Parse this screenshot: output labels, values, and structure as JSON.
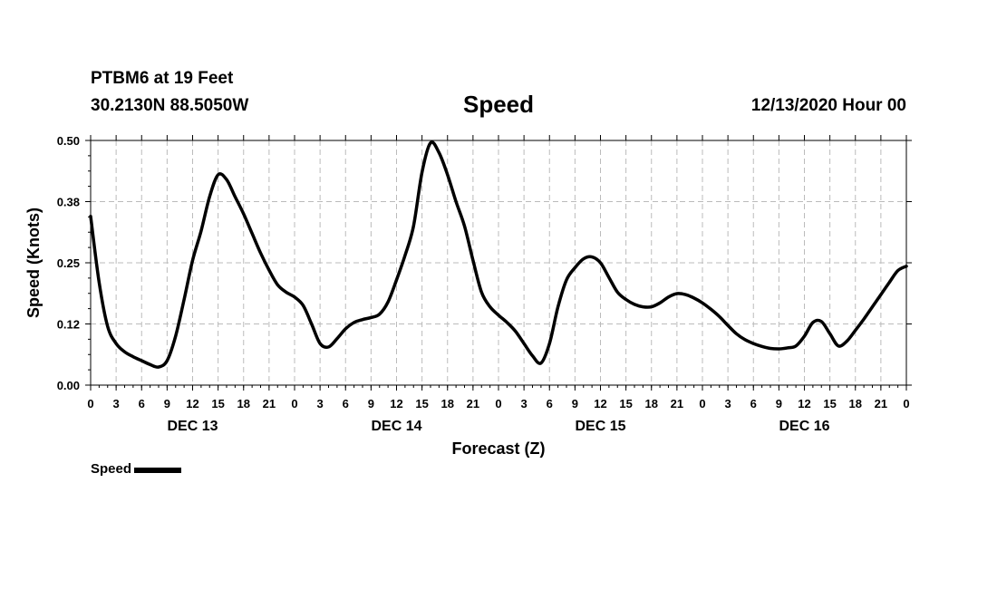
{
  "header": {
    "station": "PTBM6 at 19 Feet",
    "coords": "30.2130N 88.5050W",
    "title": "Speed",
    "timestamp": "12/13/2020 Hour 00"
  },
  "legend": {
    "label": "Speed"
  },
  "colors": {
    "line": "#000000",
    "grid": "#bbbbbb",
    "background": "#ffffff"
  },
  "chart_data": {
    "type": "line",
    "title": "Speed",
    "xlabel": "Forecast (Z)",
    "ylabel": "Speed (Knots)",
    "xlim": [
      0,
      96
    ],
    "ylim": [
      0,
      0.5
    ],
    "y_ticks": [
      0.0,
      0.125,
      0.25,
      0.375,
      0.5
    ],
    "y_tick_labels": [
      "0.00",
      "0.12",
      "0.25",
      "0.38",
      "0.50"
    ],
    "x_ticks": [
      0,
      3,
      6,
      9,
      12,
      15,
      18,
      21,
      24,
      27,
      30,
      33,
      36,
      39,
      42,
      45,
      48,
      51,
      54,
      57,
      60,
      63,
      66,
      69,
      72,
      75,
      78,
      81,
      84,
      87,
      90,
      93,
      96
    ],
    "x_tick_labels": [
      "0",
      "3",
      "6",
      "9",
      "12",
      "15",
      "18",
      "21",
      "0",
      "3",
      "6",
      "9",
      "12",
      "15",
      "18",
      "21",
      "0",
      "3",
      "6",
      "9",
      "12",
      "15",
      "18",
      "21",
      "0",
      "3",
      "6",
      "9",
      "12",
      "15",
      "18",
      "21",
      "0"
    ],
    "day_labels": [
      {
        "hour": 12,
        "label": "DEC 13"
      },
      {
        "hour": 36,
        "label": "DEC 14"
      },
      {
        "hour": 60,
        "label": "DEC 15"
      },
      {
        "hour": 84,
        "label": "DEC 16"
      }
    ],
    "grid": true,
    "series": [
      {
        "name": "Speed",
        "x": [
          0,
          1,
          2,
          3,
          4,
          5,
          6,
          7,
          8,
          9,
          10,
          11,
          12,
          13,
          14,
          15,
          16,
          17,
          18,
          19,
          20,
          21,
          22,
          23,
          24,
          25,
          26,
          27,
          28,
          29,
          30,
          31,
          32,
          33,
          34,
          35,
          36,
          37,
          38,
          39,
          40,
          41,
          42,
          43,
          44,
          45,
          46,
          47,
          48,
          49,
          50,
          51,
          52,
          53,
          54,
          55,
          56,
          57,
          58,
          59,
          60,
          61,
          62,
          63,
          64,
          65,
          66,
          67,
          68,
          69,
          70,
          71,
          72,
          73,
          74,
          75,
          76,
          77,
          78,
          79,
          80,
          81,
          82,
          83,
          84,
          85,
          86,
          87,
          88,
          89,
          90,
          91,
          92,
          93,
          94,
          95,
          96
        ],
        "values": [
          0.345,
          0.21,
          0.12,
          0.085,
          0.068,
          0.058,
          0.05,
          0.042,
          0.037,
          0.05,
          0.1,
          0.175,
          0.255,
          0.315,
          0.385,
          0.43,
          0.42,
          0.385,
          0.35,
          0.31,
          0.27,
          0.235,
          0.205,
          0.19,
          0.18,
          0.163,
          0.125,
          0.085,
          0.078,
          0.095,
          0.115,
          0.128,
          0.134,
          0.138,
          0.145,
          0.17,
          0.215,
          0.265,
          0.325,
          0.435,
          0.495,
          0.475,
          0.43,
          0.375,
          0.325,
          0.255,
          0.19,
          0.16,
          0.143,
          0.128,
          0.11,
          0.085,
          0.06,
          0.045,
          0.085,
          0.16,
          0.215,
          0.24,
          0.258,
          0.262,
          0.25,
          0.22,
          0.19,
          0.175,
          0.165,
          0.16,
          0.16,
          0.168,
          0.18,
          0.187,
          0.185,
          0.178,
          0.168,
          0.155,
          0.14,
          0.122,
          0.105,
          0.093,
          0.085,
          0.079,
          0.075,
          0.074,
          0.076,
          0.08,
          0.1,
          0.128,
          0.13,
          0.105,
          0.08,
          0.09,
          0.112,
          0.135,
          0.16,
          0.185,
          0.21,
          0.234,
          0.243
        ]
      }
    ]
  }
}
